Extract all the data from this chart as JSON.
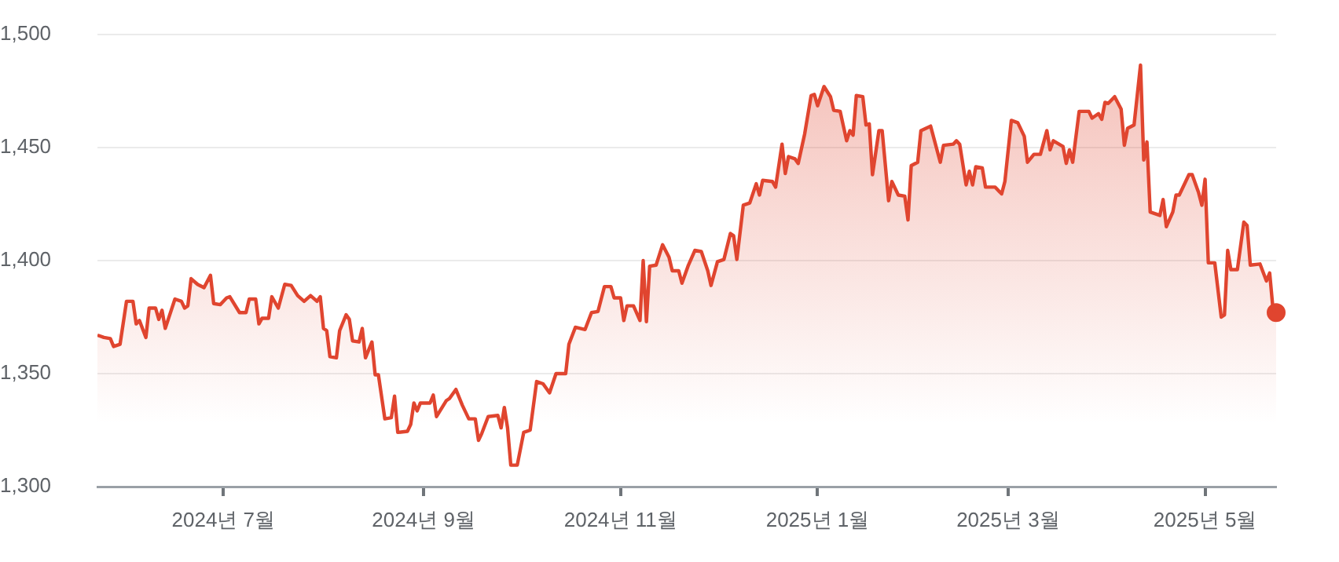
{
  "chart_data": {
    "type": "area",
    "ylim": [
      1300,
      1500
    ],
    "yticks": [
      {
        "value": 1300,
        "label": "1,300"
      },
      {
        "value": 1350,
        "label": "1,350"
      },
      {
        "value": 1400,
        "label": "1,400"
      },
      {
        "value": 1450,
        "label": "1,450"
      },
      {
        "value": 1500,
        "label": "1,500"
      }
    ],
    "xlim": [
      "2024-05-23",
      "2025-05-23"
    ],
    "xticks": [
      {
        "value": "2024-07-01",
        "label": "2024년 7월"
      },
      {
        "value": "2024-09-01",
        "label": "2024년 9월"
      },
      {
        "value": "2024-11-01",
        "label": "2024년 11월"
      },
      {
        "value": "2025-01-01",
        "label": "2025년 1월"
      },
      {
        "value": "2025-03-01",
        "label": "2025년 3월"
      },
      {
        "value": "2025-05-01",
        "label": "2025년 5월"
      }
    ],
    "grid": "y",
    "x": [
      "2024-05-23",
      "2024-05-25",
      "2024-05-27",
      "2024-05-28",
      "2024-05-30",
      "2024-06-01",
      "2024-06-03",
      "2024-06-04",
      "2024-06-05",
      "2024-06-07",
      "2024-06-08",
      "2024-06-10",
      "2024-06-11",
      "2024-06-12",
      "2024-06-13",
      "2024-06-16",
      "2024-06-18",
      "2024-06-19",
      "2024-06-20",
      "2024-06-21",
      "2024-06-23",
      "2024-06-25",
      "2024-06-27",
      "2024-06-28",
      "2024-06-30",
      "2024-07-02",
      "2024-07-03",
      "2024-07-06",
      "2024-07-08",
      "2024-07-09",
      "2024-07-11",
      "2024-07-12",
      "2024-07-13",
      "2024-07-15",
      "2024-07-16",
      "2024-07-18",
      "2024-07-20",
      "2024-07-22",
      "2024-07-24",
      "2024-07-26",
      "2024-07-28",
      "2024-07-30",
      "2024-07-31",
      "2024-08-01",
      "2024-08-02",
      "2024-08-03",
      "2024-08-05",
      "2024-08-06",
      "2024-08-08",
      "2024-08-09",
      "2024-08-10",
      "2024-08-12",
      "2024-08-13",
      "2024-08-14",
      "2024-08-16",
      "2024-08-17",
      "2024-08-18",
      "2024-08-20",
      "2024-08-22",
      "2024-08-23",
      "2024-08-24",
      "2024-08-27",
      "2024-08-28",
      "2024-08-29",
      "2024-08-30",
      "2024-08-31",
      "2024-09-03",
      "2024-09-04",
      "2024-09-05",
      "2024-09-08",
      "2024-09-09",
      "2024-09-11",
      "2024-09-13",
      "2024-09-15",
      "2024-09-17",
      "2024-09-18",
      "2024-09-19",
      "2024-09-21",
      "2024-09-24",
      "2024-09-25",
      "2024-09-26",
      "2024-09-27",
      "2024-09-28",
      "2024-09-30",
      "2024-10-02",
      "2024-10-04",
      "2024-10-06",
      "2024-10-08",
      "2024-10-10",
      "2024-10-12",
      "2024-10-15",
      "2024-10-16",
      "2024-10-18",
      "2024-10-21",
      "2024-10-23",
      "2024-10-25",
      "2024-10-27",
      "2024-10-29",
      "2024-10-30",
      "2024-11-01",
      "2024-11-02",
      "2024-11-03",
      "2024-11-05",
      "2024-11-07",
      "2024-11-08",
      "2024-11-09",
      "2024-11-10",
      "2024-11-12",
      "2024-11-14",
      "2024-11-16",
      "2024-11-17",
      "2024-11-19",
      "2024-11-20",
      "2024-11-22",
      "2024-11-24",
      "2024-11-26",
      "2024-11-28",
      "2024-11-29",
      "2024-12-01",
      "2024-12-03",
      "2024-12-05",
      "2024-12-06",
      "2024-12-07",
      "2024-12-09",
      "2024-12-11",
      "2024-12-13",
      "2024-12-14",
      "2024-12-15",
      "2024-12-18",
      "2024-12-19",
      "2024-12-21",
      "2024-12-22",
      "2024-12-23",
      "2024-12-25",
      "2024-12-26",
      "2024-12-28",
      "2024-12-30",
      "2024-12-31",
      "2025-01-01",
      "2025-01-03",
      "2025-01-05",
      "2025-01-06",
      "2025-01-08",
      "2025-01-10",
      "2025-01-11",
      "2025-01-12",
      "2025-01-13",
      "2025-01-15",
      "2025-01-16",
      "2025-01-17",
      "2025-01-18",
      "2025-01-20",
      "2025-01-21",
      "2025-01-23",
      "2025-01-24",
      "2025-01-26",
      "2025-01-28",
      "2025-01-29",
      "2025-01-30",
      "2025-02-01",
      "2025-02-02",
      "2025-02-05",
      "2025-02-08",
      "2025-02-09",
      "2025-02-12",
      "2025-02-13",
      "2025-02-14",
      "2025-02-16",
      "2025-02-17",
      "2025-02-18",
      "2025-02-19",
      "2025-02-21",
      "2025-02-22",
      "2025-02-25",
      "2025-02-27",
      "2025-02-28",
      "2025-03-02",
      "2025-03-04",
      "2025-03-06",
      "2025-03-07",
      "2025-03-09",
      "2025-03-11",
      "2025-03-13",
      "2025-03-14",
      "2025-03-15",
      "2025-03-18",
      "2025-03-19",
      "2025-03-20",
      "2025-03-21",
      "2025-03-23",
      "2025-03-26",
      "2025-03-27",
      "2025-03-29",
      "2025-03-30",
      "2025-03-31",
      "2025-04-01",
      "2025-04-03",
      "2025-04-05",
      "2025-04-06",
      "2025-04-07",
      "2025-04-09",
      "2025-04-11",
      "2025-04-12",
      "2025-04-13",
      "2025-04-14",
      "2025-04-17",
      "2025-04-18",
      "2025-04-19",
      "2025-04-21",
      "2025-04-22",
      "2025-04-23",
      "2025-04-26",
      "2025-04-27",
      "2025-04-29",
      "2025-04-30",
      "2025-05-01",
      "2025-05-02",
      "2025-05-04",
      "2025-05-06",
      "2025-05-07",
      "2025-05-08",
      "2025-05-09",
      "2025-05-11",
      "2025-05-13",
      "2025-05-14",
      "2025-05-15",
      "2025-05-18",
      "2025-05-20",
      "2025-05-21",
      "2025-05-22",
      "2025-05-23"
    ],
    "series": [
      {
        "color": "#e0452f",
        "values": [
          1367,
          1366,
          1365.5,
          1362,
          1363,
          1382,
          1382,
          1372,
          1373.5,
          1366,
          1379,
          1379,
          1374,
          1378,
          1370,
          1383,
          1382,
          1379,
          1380,
          1392,
          1389.5,
          1388,
          1393.5,
          1381,
          1380.5,
          1383.5,
          1384,
          1377,
          1377,
          1383,
          1383,
          1372,
          1374.5,
          1374.5,
          1384,
          1379,
          1389.5,
          1389,
          1384.5,
          1382,
          1384.5,
          1382,
          1384,
          1370,
          1369,
          1357.5,
          1357,
          1369,
          1376,
          1374,
          1364.5,
          1364,
          1370,
          1357,
          1364,
          1349.5,
          1349.5,
          1330,
          1330.5,
          1340,
          1324,
          1324.5,
          1327.5,
          1337,
          1333.5,
          1337,
          1337,
          1340.5,
          1331,
          1338,
          1339,
          1343,
          1336,
          1330,
          1330,
          1320.5,
          1323.5,
          1331,
          1331.5,
          1326,
          1335,
          1326,
          1309.5,
          1309.5,
          1324,
          1325,
          1346.5,
          1345.5,
          1341.5,
          1350,
          1350,
          1363,
          1370.5,
          1369.5,
          1377,
          1377.5,
          1388.5,
          1388.5,
          1383.5,
          1383.5,
          1373.5,
          1380,
          1380,
          1373.5,
          1400,
          1373,
          1397.5,
          1398,
          1407,
          1401.5,
          1395.5,
          1395.5,
          1390,
          1398,
          1404.5,
          1404,
          1395.5,
          1389,
          1399.5,
          1400.5,
          1412,
          1411,
          1400.5,
          1424.5,
          1425.5,
          1434,
          1429,
          1435.5,
          1435,
          1432.5,
          1451.5,
          1438.5,
          1446,
          1445,
          1443,
          1456,
          1473,
          1473.5,
          1468.5,
          1477,
          1472.5,
          1466.5,
          1466,
          1453,
          1457.5,
          1455.5,
          1473,
          1472.5,
          1460,
          1460.5,
          1438,
          1457.5,
          1457.5,
          1426.5,
          1435,
          1429,
          1428.5,
          1418,
          1442,
          1443.5,
          1457.5,
          1459.5,
          1443.5,
          1451,
          1451.5,
          1453,
          1451.5,
          1433.5,
          1439.5,
          1433.5,
          1441.5,
          1441,
          1432.5,
          1432.5,
          1429.5,
          1435,
          1462,
          1461,
          1455,
          1443.5,
          1447,
          1447,
          1457.5,
          1449,
          1453,
          1450.5,
          1443,
          1449,
          1443.5,
          1466,
          1466,
          1463,
          1465,
          1462.5,
          1470,
          1469.5,
          1472.5,
          1467,
          1451,
          1458.5,
          1460,
          1486.5,
          1444.5,
          1452.5,
          1421.5,
          1420,
          1427,
          1415,
          1421.5,
          1429,
          1429,
          1438,
          1438,
          1430,
          1424.5,
          1436,
          1399,
          1399,
          1375,
          1376,
          1404.5,
          1396,
          1396,
          1417,
          1415.5,
          1398,
          1398.5,
          1391,
          1394.5,
          1379,
          1377
        ]
      },
      {
        "type": "scatter",
        "color": "#e0452f",
        "marker": "circle",
        "x": [
          "2025-05-23"
        ],
        "values": [
          1377
        ]
      }
    ]
  }
}
